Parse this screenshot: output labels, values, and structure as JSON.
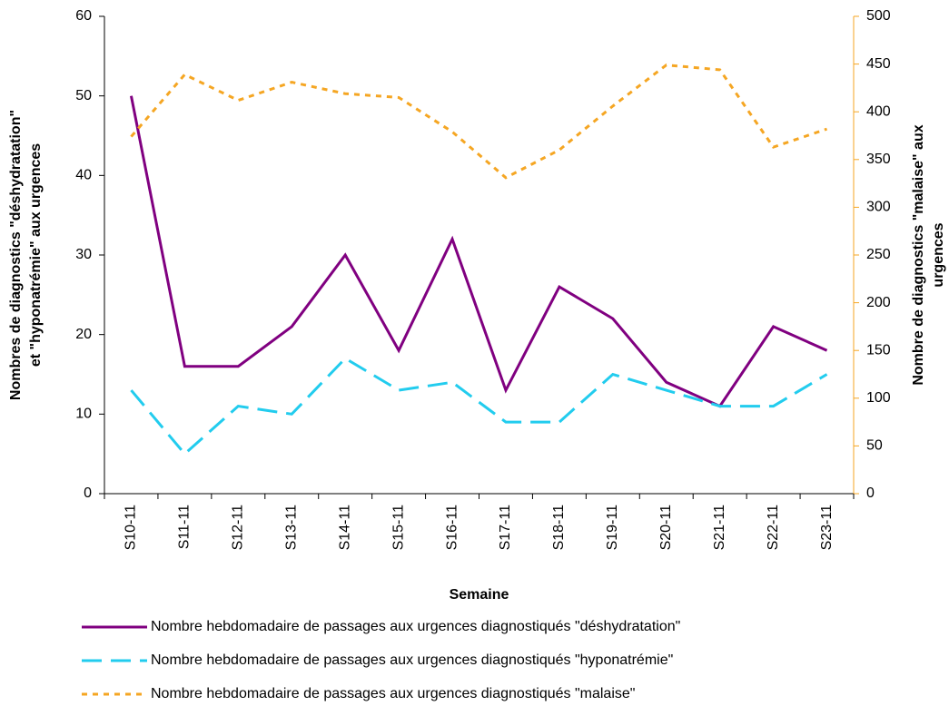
{
  "chart_data": {
    "type": "line",
    "x_label": "Semaine",
    "y_label": [
      "Nombres de diagnostics \"déshydratation\"",
      "et \"hyponatrémie\" aux urgences"
    ],
    "y2_label": [
      "Nombre de diagnostics \"malaise\" aux",
      "urgences"
    ],
    "categories": [
      "S10-11",
      "S11-11",
      "S12-11",
      "S13-11",
      "S14-11",
      "S15-11",
      "S16-11",
      "S17-11",
      "S18-11",
      "S19-11",
      "S20-11",
      "S21-11",
      "S22-11",
      "S23-11"
    ],
    "series": [
      {
        "name": "Nombre hebdomadaire de passages aux urgences diagnostiqués \"déshydratation\"",
        "color": "#800080",
        "line_style": "solid",
        "values": [
          50,
          16,
          16,
          21,
          30,
          18,
          32,
          13,
          26,
          22,
          14,
          11,
          21,
          18
        ]
      },
      {
        "name": "Nombre hebdomadaire de passages aux urgences diagnostiqués \"hyponatrémie\"",
        "color": "#22ccee",
        "line_style": "dashed",
        "values": [
          13,
          5,
          11,
          10,
          17,
          13,
          14,
          9,
          9,
          15,
          13,
          11,
          11,
          15
        ]
      },
      {
        "name": "Nombre hebdomadaire de passages aux urgences diagnostiqués \"malaise\"",
        "color": "#f5a623",
        "line_style": "dotted",
        "axis": "y2",
        "values": [
          374,
          439,
          412,
          431,
          419,
          415,
          379,
          331,
          360,
          406,
          449,
          444,
          363,
          382
        ]
      }
    ],
    "ylim": [
      0,
      60
    ],
    "yticks": [
      0,
      10,
      20,
      30,
      40,
      50,
      60
    ],
    "y2lim": [
      0,
      500
    ],
    "y2ticks": [
      0,
      50,
      100,
      150,
      200,
      250,
      300,
      350,
      400,
      450,
      500
    ],
    "y2_color": "#f5a623",
    "legend": "bottom"
  }
}
